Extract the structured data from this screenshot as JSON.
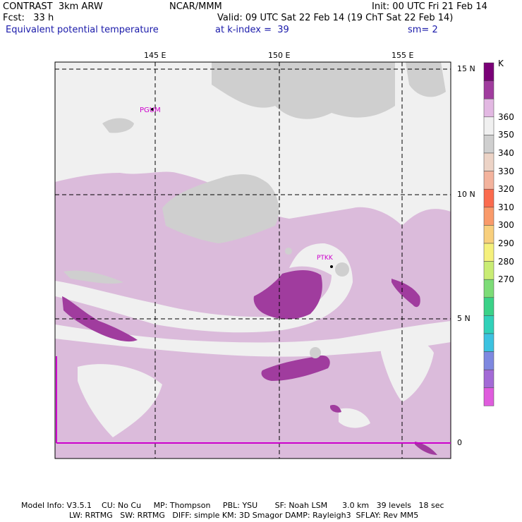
{
  "header": {
    "model": "CONTRAST  3km ARW",
    "org": "NCAR/MMM",
    "init": "Init: 00 UTC Fri 21 Feb 14",
    "fcst": "Fcst:   33 h",
    "valid": "Valid: 09 UTC Sat 22 Feb 14 (19 ChT Sat 22 Feb 14)",
    "field": "Equivalent potential temperature",
    "level": "at k-index =  39",
    "smooth": "sm= 2"
  },
  "longitude_labels": [
    "145 E",
    "150 E",
    "155 E"
  ],
  "latitude_labels": [
    "15 N",
    "10 N",
    "5 N",
    "0"
  ],
  "stations": [
    "PGUM",
    "PTKK"
  ],
  "colorbar": {
    "unit": "K",
    "labels": [
      "360",
      "350",
      "340",
      "330",
      "320",
      "310",
      "300",
      "290",
      "280",
      "270"
    ],
    "colors": [
      "#7a0077",
      "#a03c9e",
      "#e2b8e2",
      "#f0f0f0",
      "#cfcfcf",
      "#ecd3c6",
      "#f3b39d",
      "#fb6b4e",
      "#f99a6a",
      "#f8cf7d",
      "#f5f07c",
      "#c9ec74",
      "#7ddc77",
      "#3bd288",
      "#31d1b9",
      "#3cc2e0",
      "#7e88e0",
      "#a36ad6",
      "#df5cdd"
    ]
  },
  "footer": {
    "line1": "Model Info: V3.5.1    CU: No Cu     MP: Thompson     PBL: YSU       SF: Noah LSM      3.0 km   39 levels   18 sec",
    "line2": "LW: RRTMG   SW: RRTMG   DIFF: simple KM: 3D Smagor DAMP: Rayleigh3  SFLAY: Rev MM5"
  },
  "palette": {
    "background": "#dbbbdb",
    "light_purple": "#e2b8e2",
    "white": "#f0f0f0",
    "gray": "#cfcfcf",
    "dark_purple": "#a03c9e",
    "station": "#cc00cc"
  }
}
